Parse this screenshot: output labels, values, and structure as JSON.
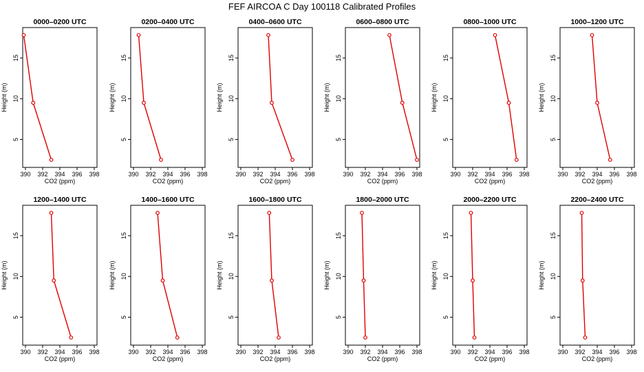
{
  "figure": {
    "title": "FEF AIRCOA C  Day 100118  Calibrated Profiles",
    "colors": {
      "series": "#dd0000",
      "axis": "#000000"
    }
  },
  "chart_data": [
    {
      "type": "line",
      "title": "0000–0200 UTC",
      "xlabel": "CO2 (ppm)",
      "ylabel": "Height (m)",
      "xlim": [
        390,
        398
      ],
      "ylim": [
        2.5,
        17.8
      ],
      "xticks": [
        "390",
        "392",
        "394",
        "396",
        "398"
      ],
      "yticks": [
        "5",
        "10",
        "15"
      ],
      "x": [
        389.8,
        390.9,
        393.0
      ],
      "y": [
        17.8,
        9.5,
        2.5
      ]
    },
    {
      "type": "line",
      "title": "0200–0400 UTC",
      "xlabel": "CO2 (ppm)",
      "ylabel": "Height (m)",
      "xlim": [
        390,
        398
      ],
      "ylim": [
        2.5,
        17.8
      ],
      "xticks": [
        "390",
        "392",
        "394",
        "396",
        "398"
      ],
      "yticks": [
        "5",
        "10",
        "15"
      ],
      "x": [
        390.6,
        391.2,
        393.2
      ],
      "y": [
        17.8,
        9.5,
        2.5
      ]
    },
    {
      "type": "line",
      "title": "0400–0600 UTC",
      "xlabel": "CO2 (ppm)",
      "ylabel": "Height (m)",
      "xlim": [
        390,
        398
      ],
      "ylim": [
        2.5,
        17.8
      ],
      "xticks": [
        "390",
        "392",
        "394",
        "396",
        "398"
      ],
      "yticks": [
        "5",
        "10",
        "15"
      ],
      "x": [
        393.2,
        393.6,
        396.0
      ],
      "y": [
        17.8,
        9.5,
        2.5
      ]
    },
    {
      "type": "line",
      "title": "0600–0800 UTC",
      "xlabel": "CO2 (ppm)",
      "ylabel": "Height (m)",
      "xlim": [
        390,
        398
      ],
      "ylim": [
        2.5,
        17.8
      ],
      "xticks": [
        "390",
        "392",
        "394",
        "396",
        "398"
      ],
      "yticks": [
        "5",
        "10",
        "15"
      ],
      "x": [
        394.8,
        396.3,
        398.0
      ],
      "y": [
        17.8,
        9.5,
        2.5
      ]
    },
    {
      "type": "line",
      "title": "0800–1000 UTC",
      "xlabel": "CO2 (ppm)",
      "ylabel": "Height (m)",
      "xlim": [
        390,
        398
      ],
      "ylim": [
        2.5,
        17.8
      ],
      "xticks": [
        "390",
        "392",
        "394",
        "396",
        "398"
      ],
      "yticks": [
        "5",
        "10",
        "15"
      ],
      "x": [
        394.6,
        396.2,
        397.1
      ],
      "y": [
        17.8,
        9.5,
        2.5
      ]
    },
    {
      "type": "line",
      "title": "1000–1200 UTC",
      "xlabel": "CO2 (ppm)",
      "ylabel": "Height (m)",
      "xlim": [
        390,
        398
      ],
      "ylim": [
        2.5,
        17.8
      ],
      "xticks": [
        "390",
        "392",
        "394",
        "396",
        "398"
      ],
      "yticks": [
        "5",
        "10",
        "15"
      ],
      "x": [
        393.4,
        394.0,
        395.5
      ],
      "y": [
        17.8,
        9.5,
        2.5
      ]
    },
    {
      "type": "line",
      "title": "1200–1400 UTC",
      "xlabel": "CO2 (ppm)",
      "ylabel": "Height (m)",
      "xlim": [
        390,
        398
      ],
      "ylim": [
        2.5,
        17.8
      ],
      "xticks": [
        "390",
        "392",
        "394",
        "396",
        "398"
      ],
      "yticks": [
        "5",
        "10",
        "15"
      ],
      "x": [
        393.0,
        393.3,
        395.3
      ],
      "y": [
        17.8,
        9.5,
        2.5
      ]
    },
    {
      "type": "line",
      "title": "1400–1600 UTC",
      "xlabel": "CO2 (ppm)",
      "ylabel": "Height (m)",
      "xlim": [
        390,
        398
      ],
      "ylim": [
        2.5,
        17.8
      ],
      "xticks": [
        "390",
        "392",
        "394",
        "396",
        "398"
      ],
      "yticks": [
        "5",
        "10",
        "15"
      ],
      "x": [
        392.8,
        393.4,
        395.1
      ],
      "y": [
        17.8,
        9.5,
        2.5
      ]
    },
    {
      "type": "line",
      "title": "1600–1800 UTC",
      "xlabel": "CO2 (ppm)",
      "ylabel": "Height (m)",
      "xlim": [
        390,
        398
      ],
      "ylim": [
        2.5,
        17.8
      ],
      "xticks": [
        "390",
        "392",
        "394",
        "396",
        "398"
      ],
      "yticks": [
        "5",
        "10",
        "15"
      ],
      "x": [
        393.3,
        393.6,
        394.4
      ],
      "y": [
        17.8,
        9.5,
        2.5
      ]
    },
    {
      "type": "line",
      "title": "1800–2000 UTC",
      "xlabel": "CO2 (ppm)",
      "ylabel": "Height (m)",
      "xlim": [
        390,
        398
      ],
      "ylim": [
        2.5,
        17.8
      ],
      "xticks": [
        "390",
        "392",
        "394",
        "396",
        "398"
      ],
      "yticks": [
        "5",
        "10",
        "15"
      ],
      "x": [
        391.6,
        391.8,
        392.0
      ],
      "y": [
        17.8,
        9.5,
        2.5
      ]
    },
    {
      "type": "line",
      "title": "2000–2200 UTC",
      "xlabel": "CO2 (ppm)",
      "ylabel": "Height (m)",
      "xlim": [
        390,
        398
      ],
      "ylim": [
        2.5,
        17.8
      ],
      "xticks": [
        "390",
        "392",
        "394",
        "396",
        "398"
      ],
      "yticks": [
        "5",
        "10",
        "15"
      ],
      "x": [
        391.8,
        392.0,
        392.2
      ],
      "y": [
        17.8,
        9.5,
        2.5
      ]
    },
    {
      "type": "line",
      "title": "2200–2400 UTC",
      "xlabel": "CO2 (ppm)",
      "ylabel": "Height (m)",
      "xlim": [
        390,
        398
      ],
      "ylim": [
        2.5,
        17.8
      ],
      "xticks": [
        "390",
        "392",
        "394",
        "396",
        "398"
      ],
      "yticks": [
        "5",
        "10",
        "15"
      ],
      "x": [
        392.2,
        392.3,
        392.6
      ],
      "y": [
        17.8,
        9.5,
        2.5
      ]
    }
  ]
}
